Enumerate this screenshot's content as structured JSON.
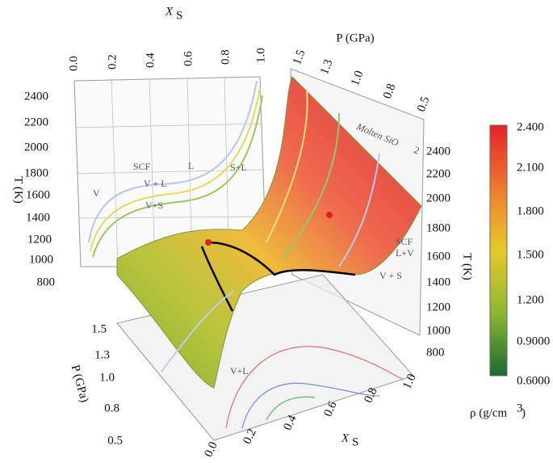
{
  "left_panel": {
    "x_label": "X",
    "x_label_sub": "S",
    "y_label": "T (K)",
    "x_ticks": [
      "0.0",
      "0.2",
      "0.4",
      "0.6",
      "0.8",
      "1.0"
    ],
    "y_ticks": [
      "2400",
      "2200",
      "2000",
      "1800",
      "1600",
      "1400",
      "1200",
      "1000",
      "800"
    ],
    "regions": [
      "SCF",
      "L",
      "S+L",
      "V",
      "V + L",
      "V+S"
    ]
  },
  "right_panel": {
    "p_label": "P (GPa)",
    "t_label": "T (K)",
    "p_ticks": [
      "1.5",
      "1.3",
      "1.0",
      "0.8",
      "0.5"
    ],
    "t_ticks": [
      "2400",
      "2200",
      "2000",
      "1800",
      "1600",
      "1400",
      "1200",
      "1000",
      "800"
    ],
    "title": "Molten SiO",
    "title_sub": "2",
    "regions": [
      "SCF",
      "L+V",
      "V + S"
    ]
  },
  "floor": {
    "p_label": "P (GPa)",
    "x_label": "X",
    "x_label_sub": "S",
    "p_ticks": [
      "1.5",
      "1.3",
      "1.0",
      "0.8",
      "0.5"
    ],
    "x_ticks": [
      "0.0",
      "0.2",
      "0.4",
      "0.6",
      "0.8",
      "1.0"
    ],
    "region": "V+L"
  },
  "colorbar": {
    "label": "ρ (g/cm",
    "label_sup": "3",
    "label_end": ")",
    "ticks": [
      "2.400",
      "2.100",
      "1.800",
      "1.500",
      "1.200",
      "0.9000",
      "0.6000"
    ]
  }
}
